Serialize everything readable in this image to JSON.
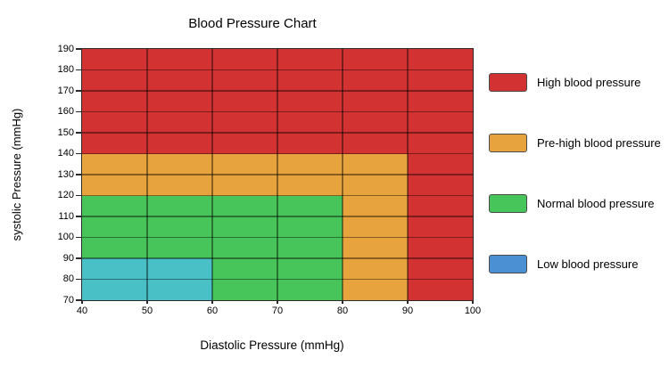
{
  "chart_data": {
    "type": "heatmap",
    "title": "Blood Pressure Chart",
    "xlabel": "Diastolic Pressure (mmHg)",
    "ylabel": "systolic Pressure (mmHg)",
    "x_range": [
      40,
      100
    ],
    "y_range": [
      70,
      190
    ],
    "x_ticks": [
      40,
      50,
      60,
      70,
      80,
      90,
      100
    ],
    "y_ticks": [
      190,
      180,
      170,
      160,
      150,
      140,
      130,
      120,
      110,
      100,
      90,
      80,
      70
    ],
    "grid": true,
    "legend_position": "right",
    "colors": {
      "high": "#d23232",
      "pre_high": "#e7a33e",
      "normal": "#47c45a",
      "low_chart": "#49bfc6",
      "low_legend": "#4a90d2",
      "grid_overlay": "rgba(0,0,0,0.42)",
      "axis_border": "#2b2b2b",
      "tick_color": "#2b2b2b"
    },
    "regions": [
      {
        "name": "high-blood-pressure",
        "color_key": "high",
        "rects_dxsy": [
          [
            40,
            140,
            100,
            190
          ],
          [
            90,
            70,
            100,
            140
          ]
        ]
      },
      {
        "name": "pre-high-blood-pressure",
        "color_key": "pre_high",
        "rects_dxsy": [
          [
            40,
            120,
            90,
            140
          ],
          [
            80,
            70,
            90,
            120
          ]
        ]
      },
      {
        "name": "normal-blood-pressure",
        "color_key": "normal",
        "rects_dxsy": [
          [
            40,
            90,
            80,
            120
          ],
          [
            60,
            70,
            80,
            90
          ]
        ]
      },
      {
        "name": "low-blood-pressure",
        "color_key": "low_chart",
        "rects_dxsy": [
          [
            40,
            70,
            60,
            90
          ]
        ]
      }
    ],
    "legend": [
      {
        "label": "High blood pressure",
        "color_key": "high"
      },
      {
        "label": "Pre-high blood pressure",
        "color_key": "pre_high"
      },
      {
        "label": "Normal blood pressure",
        "color_key": "normal"
      },
      {
        "label": "Low blood pressure",
        "color_key": "low_legend"
      }
    ]
  }
}
